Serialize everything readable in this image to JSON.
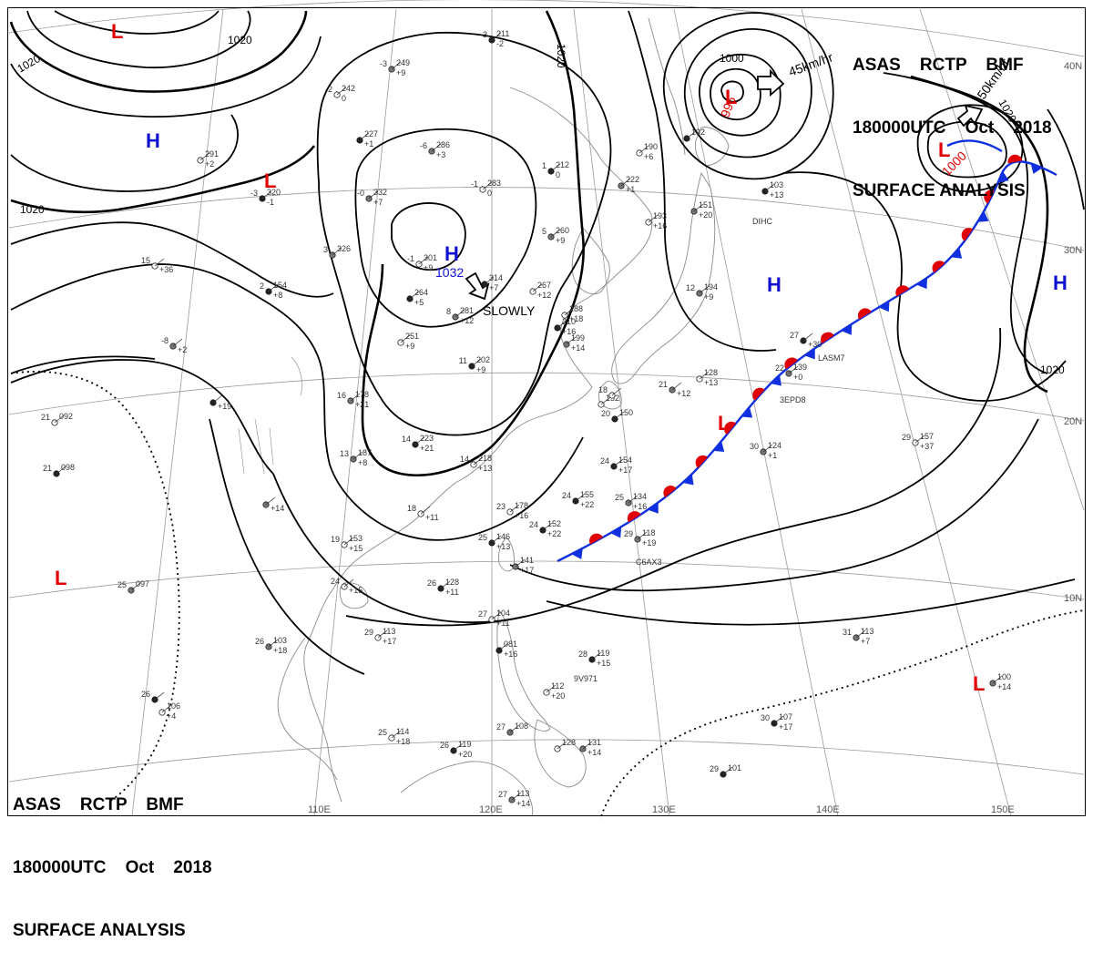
{
  "header": {
    "line1": "ASAS    RCTP    BMF",
    "line2": "180000UTC    Oct    2018",
    "line3": "SURFACE ANALYSIS"
  },
  "colors": {
    "high": "#1010d0",
    "low": "#e00000",
    "warm_front": "#e00000",
    "cold_front": "#1030e0",
    "isobar": "#000000",
    "land": "#8a8a8a",
    "grid": "#9a9a9a"
  },
  "lat_labels": [
    "40N",
    "30N",
    "20N",
    "10N"
  ],
  "lon_labels": [
    "110E",
    "120E",
    "130E",
    "140E",
    "150E"
  ],
  "isobar_labels": [
    "1020",
    "1020",
    "1020",
    "1000",
    "1020",
    "1020"
  ],
  "systems": [
    {
      "type": "H",
      "label": "H"
    },
    {
      "type": "H",
      "label": "H"
    },
    {
      "type": "H",
      "label": "H"
    },
    {
      "type": "H",
      "label": "H"
    },
    {
      "type": "L",
      "label": "L"
    },
    {
      "type": "L",
      "label": "L"
    },
    {
      "type": "L",
      "label": "L"
    },
    {
      "type": "L",
      "label": "L"
    },
    {
      "type": "L",
      "label": "L"
    },
    {
      "type": "L",
      "label": "L"
    },
    {
      "type": "L",
      "label": "L"
    }
  ],
  "pressure_values": [
    "1032",
    "996",
    "1000"
  ],
  "motions": [
    "SLOWLY",
    "45km/hr",
    "50km/hr"
  ],
  "stations": [
    {
      "t": "-3",
      "p": "211",
      "d": "-2"
    },
    {
      "t": "-3",
      "p": "249",
      "d": "+9"
    },
    {
      "t": "-2",
      "p": "242",
      "d": "0"
    },
    {
      "t": "",
      "p": "227",
      "d": "+1"
    },
    {
      "t": "-6",
      "p": "286",
      "d": "+3"
    },
    {
      "t": "",
      "p": "291",
      "d": "+2"
    },
    {
      "t": "-3",
      "p": "320",
      "d": "-1"
    },
    {
      "t": "-0",
      "p": "332",
      "d": "+7"
    },
    {
      "t": "-1",
      "p": "283",
      "d": "0"
    },
    {
      "t": "1",
      "p": "212",
      "d": "0"
    },
    {
      "t": "",
      "p": "222",
      "d": "+1"
    },
    {
      "t": "",
      "p": "190",
      "d": "+6"
    },
    {
      "t": "",
      "p": "192",
      "d": ""
    },
    {
      "t": "",
      "p": "151",
      "d": "+20"
    },
    {
      "t": "",
      "p": "193",
      "d": "+16"
    },
    {
      "t": "",
      "p": "103",
      "d": "+13"
    },
    {
      "t": "3",
      "p": "326",
      "d": ""
    },
    {
      "t": "-1",
      "p": "301",
      "d": "+9"
    },
    {
      "t": "",
      "p": "314",
      "d": "+7"
    },
    {
      "t": "5",
      "p": "260",
      "d": "+9"
    },
    {
      "t": "",
      "p": "267",
      "d": "+12"
    },
    {
      "t": "",
      "p": "264",
      "d": "+5"
    },
    {
      "t": "8",
      "p": "281",
      "d": "+12"
    },
    {
      "t": "",
      "p": "288",
      "d": "+18"
    },
    {
      "t": "",
      "p": "210",
      "d": "+16"
    },
    {
      "t": "12",
      "p": "194",
      "d": "+9"
    },
    {
      "t": "15",
      "p": "",
      "d": "+36"
    },
    {
      "t": "2",
      "p": "154",
      "d": "+8"
    },
    {
      "t": "-8",
      "p": "",
      "d": "+2"
    },
    {
      "t": "",
      "p": "251",
      "d": "+9"
    },
    {
      "t": "11",
      "p": "202",
      "d": "+9"
    },
    {
      "t": "",
      "p": "199",
      "d": "+14"
    },
    {
      "t": "",
      "p": "152",
      "d": ""
    },
    {
      "t": "",
      "p": "",
      "d": "+19"
    },
    {
      "t": "16",
      "p": "178",
      "d": "+21"
    },
    {
      "t": "18",
      "p": "",
      "d": ""
    },
    {
      "t": "20",
      "p": "150",
      "d": ""
    },
    {
      "t": "21",
      "p": "",
      "d": "+12"
    },
    {
      "t": "",
      "p": "128",
      "d": "+13"
    },
    {
      "t": "27",
      "p": "",
      "d": "+30"
    },
    {
      "t": "22",
      "p": "139",
      "d": "+0"
    },
    {
      "t": "21",
      "p": "092",
      "d": ""
    },
    {
      "t": "14",
      "p": "223",
      "d": "+21"
    },
    {
      "t": "13",
      "p": "187",
      "d": "+8"
    },
    {
      "t": "14",
      "p": "218",
      "d": "+13"
    },
    {
      "t": "24",
      "p": "154",
      "d": "+17"
    },
    {
      "t": "30",
      "p": "124",
      "d": "+1"
    },
    {
      "t": "29",
      "p": "157",
      "d": "+37"
    },
    {
      "t": "21",
      "p": "098",
      "d": ""
    },
    {
      "t": "",
      "p": "",
      "d": "+14"
    },
    {
      "t": "18",
      "p": "",
      "d": "+11"
    },
    {
      "t": "24",
      "p": "155",
      "d": "+22"
    },
    {
      "t": "25",
      "p": "134",
      "d": "+16"
    },
    {
      "t": "23",
      "p": "178",
      "d": "+16"
    },
    {
      "t": "24",
      "p": "152",
      "d": "+22"
    },
    {
      "t": "29",
      "p": "118",
      "d": "+19"
    },
    {
      "t": "19",
      "p": "153",
      "d": "+15"
    },
    {
      "t": "25",
      "p": "146",
      "d": "+13"
    },
    {
      "t": "",
      "p": "141",
      "d": "+17"
    },
    {
      "t": "24",
      "p": "",
      "d": "+15"
    },
    {
      "t": "26",
      "p": "128",
      "d": "+11"
    },
    {
      "t": "25",
      "p": "097",
      "d": ""
    },
    {
      "t": "27",
      "p": "104",
      "d": "+11"
    },
    {
      "t": "",
      "p": "081",
      "d": "+16"
    },
    {
      "t": "26",
      "p": "103",
      "d": "+18"
    },
    {
      "t": "29",
      "p": "113",
      "d": "+17"
    },
    {
      "t": "28",
      "p": "119",
      "d": "+15"
    },
    {
      "t": "31",
      "p": "113",
      "d": "+7"
    },
    {
      "t": "",
      "p": "112",
      "d": "+20"
    },
    {
      "t": "26",
      "p": "",
      "d": ""
    },
    {
      "t": "",
      "p": "100",
      "d": "+14"
    },
    {
      "t": "",
      "p": "106",
      "d": "+4"
    },
    {
      "t": "30",
      "p": "107",
      "d": "+17"
    },
    {
      "t": "27",
      "p": "108",
      "d": ""
    },
    {
      "t": "25",
      "p": "114",
      "d": "+18"
    },
    {
      "t": "26",
      "p": "119",
      "d": "+20"
    },
    {
      "t": "",
      "p": "131",
      "d": "+14"
    },
    {
      "t": "",
      "p": "128",
      "d": ""
    },
    {
      "t": "29",
      "p": "101",
      "d": ""
    },
    {
      "t": "27",
      "p": "113",
      "d": "+14"
    }
  ],
  "ship_ids": [
    "DIHC",
    "LASM7",
    "3EPD8",
    "C6AX3",
    "9V971"
  ],
  "header_bottom": {
    "line1": "ASAS    RCTP    BMF",
    "line2": "180000UTC    Oct    2018",
    "line3": "SURFACE ANALYSIS"
  }
}
